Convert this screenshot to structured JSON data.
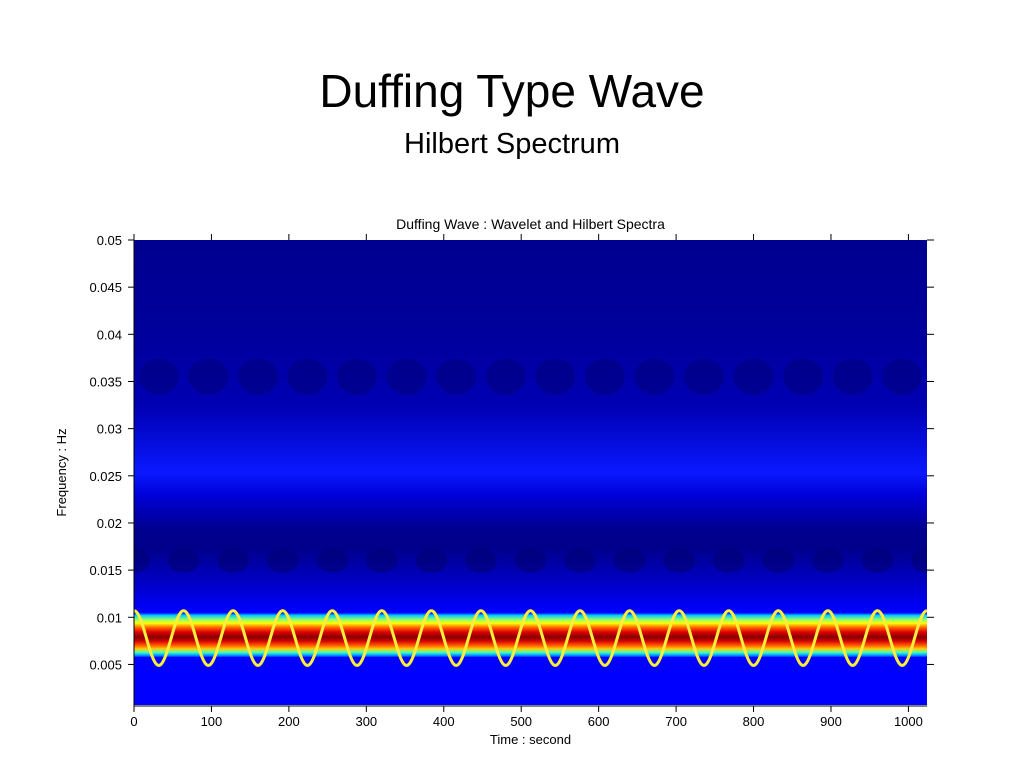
{
  "slide": {
    "title": "Duffing Type Wave",
    "subtitle": "Hilbert Spectrum"
  },
  "chart_data": {
    "type": "heatmap",
    "title": "Duffing Wave : Wavelet and Hilbert Spectra",
    "xlabel": "Time : second",
    "ylabel": "Frequency : Hz",
    "xlim": [
      0,
      1024
    ],
    "ylim": [
      0.0007,
      0.05
    ],
    "xticks": [
      0,
      100,
      200,
      300,
      400,
      500,
      600,
      700,
      800,
      900,
      1000
    ],
    "xtick_labels": [
      "0",
      "100",
      "200",
      "300",
      "400",
      "500",
      "600",
      "700",
      "800",
      "900",
      "1000"
    ],
    "yticks": [
      0.005,
      0.01,
      0.015,
      0.02,
      0.025,
      0.03,
      0.035,
      0.04,
      0.045,
      0.05
    ],
    "ytick_labels": [
      "0.005",
      "0.01",
      "0.015",
      "0.02",
      "0.025",
      "0.03",
      "0.035",
      "0.04",
      "0.045",
      "0.05"
    ],
    "colormap": "jet",
    "background_color": "#00008f",
    "spectral_band": {
      "center_frequency": 0.008,
      "low_frequency": 0.0058,
      "high_frequency": 0.0105
    },
    "hilbert_frequency_line": {
      "color": "#ffee3a",
      "mean_frequency": 0.0078,
      "amplitude": 0.0029,
      "period_seconds": 64,
      "first_peak_time": 0
    },
    "grid": false
  }
}
